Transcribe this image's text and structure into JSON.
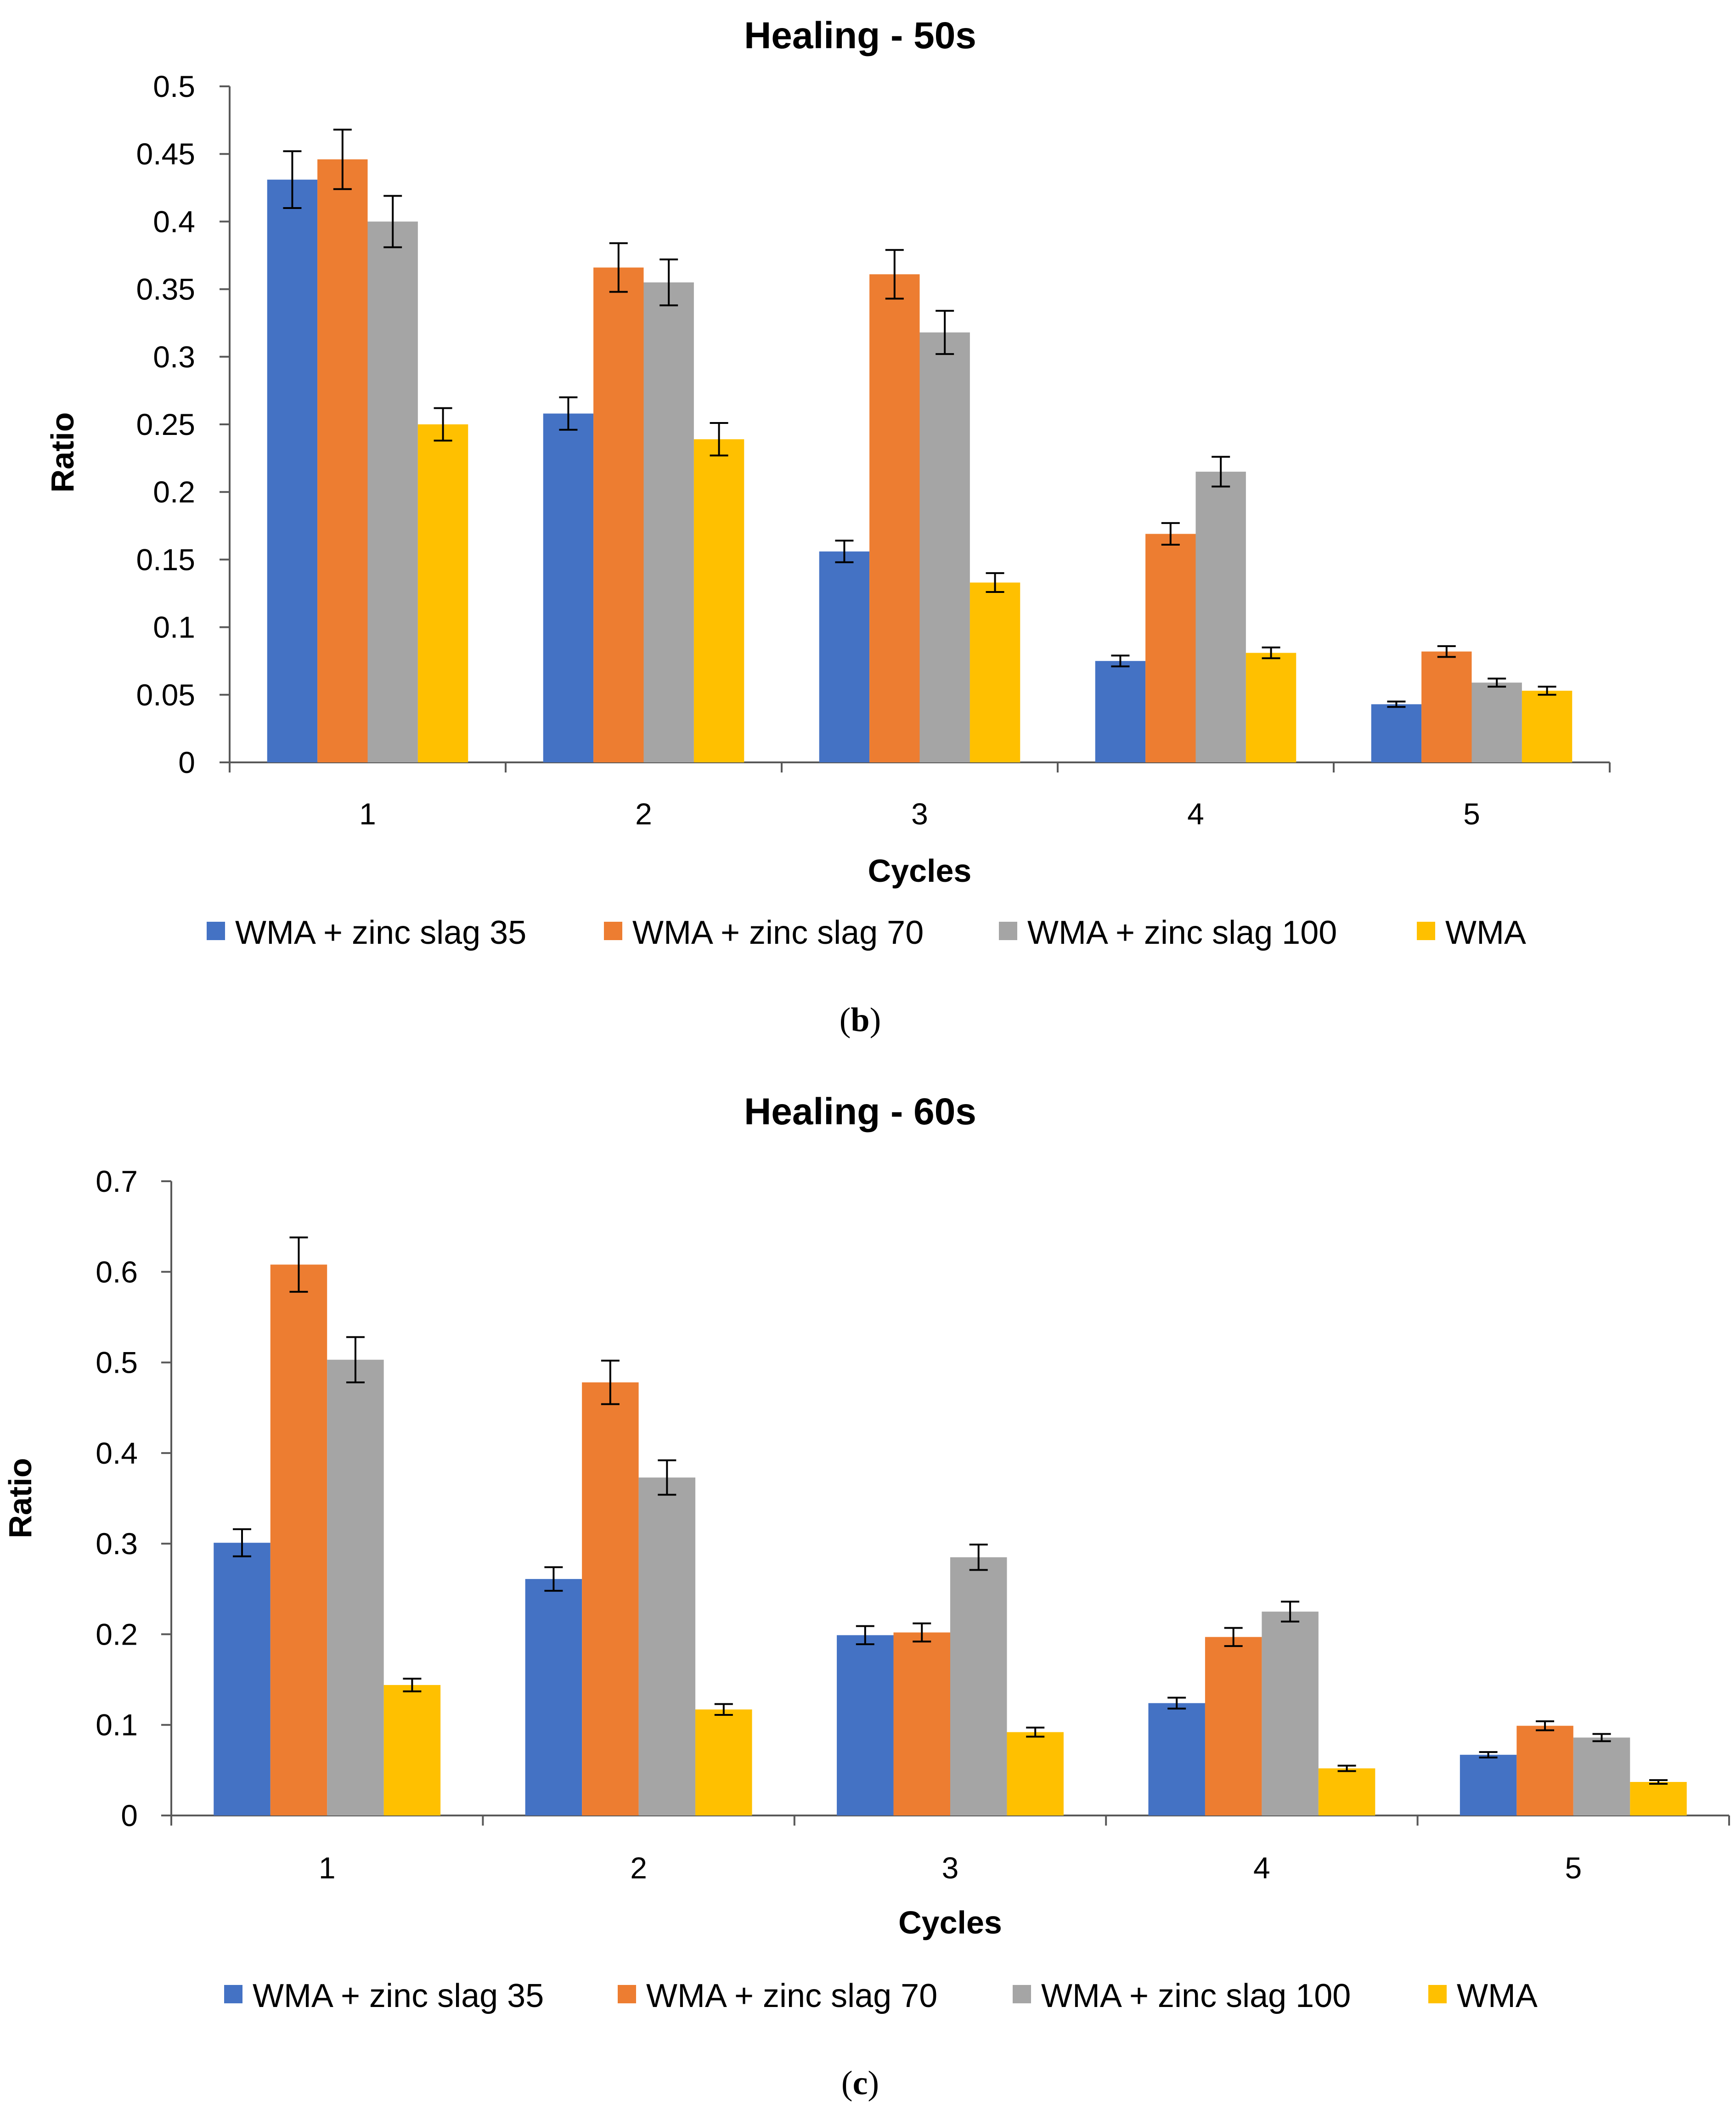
{
  "chart_data": [
    {
      "type": "bar",
      "title": "Healing - 50s",
      "xlabel": "Cycles",
      "ylabel": "Ratio",
      "caption": {
        "open": "(",
        "letter": "b",
        "close": ")"
      },
      "categories": [
        "1",
        "2",
        "3",
        "4",
        "5"
      ],
      "ylim": [
        0,
        0.5
      ],
      "yticks": [
        "0",
        "0.05",
        "0.1",
        "0.15",
        "0.2",
        "0.25",
        "0.3",
        "0.35",
        "0.4",
        "0.45",
        "0.5"
      ],
      "grid": false,
      "legend_position": "bottom",
      "series": [
        {
          "name": "WMA + zinc slag 35",
          "color": "#4472C4",
          "values": [
            0.431,
            0.258,
            0.156,
            0.075,
            0.043
          ],
          "errors": [
            0.021,
            0.012,
            0.008,
            0.004,
            0.002
          ]
        },
        {
          "name": "WMA + zinc slag 70",
          "color": "#ED7D31",
          "values": [
            0.446,
            0.366,
            0.361,
            0.169,
            0.082
          ],
          "errors": [
            0.022,
            0.018,
            0.018,
            0.008,
            0.004
          ]
        },
        {
          "name": "WMA + zinc slag 100",
          "color": "#A5A5A5",
          "values": [
            0.4,
            0.355,
            0.318,
            0.215,
            0.059
          ],
          "errors": [
            0.019,
            0.017,
            0.016,
            0.011,
            0.003
          ]
        },
        {
          "name": "WMA",
          "color": "#FFC000",
          "values": [
            0.25,
            0.239,
            0.133,
            0.081,
            0.053
          ],
          "errors": [
            0.012,
            0.012,
            0.007,
            0.004,
            0.003
          ]
        }
      ]
    },
    {
      "type": "bar",
      "title": "Healing - 60s",
      "xlabel": "Cycles",
      "ylabel": "Ratio",
      "caption": {
        "open": "(",
        "letter": "c",
        "close": ")"
      },
      "categories": [
        "1",
        "2",
        "3",
        "4",
        "5"
      ],
      "ylim": [
        0,
        0.7
      ],
      "yticks": [
        "0",
        "0.1",
        "0.2",
        "0.3",
        "0.4",
        "0.5",
        "0.6",
        "0.7"
      ],
      "grid": false,
      "legend_position": "bottom",
      "series": [
        {
          "name": "WMA + zinc slag 35",
          "color": "#4472C4",
          "values": [
            0.301,
            0.261,
            0.199,
            0.124,
            0.067
          ],
          "errors": [
            0.015,
            0.013,
            0.01,
            0.006,
            0.003
          ]
        },
        {
          "name": "WMA + zinc slag 70",
          "color": "#ED7D31",
          "values": [
            0.608,
            0.478,
            0.202,
            0.197,
            0.099
          ],
          "errors": [
            0.03,
            0.024,
            0.01,
            0.01,
            0.005
          ]
        },
        {
          "name": "WMA + zinc slag 100",
          "color": "#A5A5A5",
          "values": [
            0.503,
            0.373,
            0.285,
            0.225,
            0.086
          ],
          "errors": [
            0.025,
            0.019,
            0.014,
            0.011,
            0.004
          ]
        },
        {
          "name": "WMA",
          "color": "#FFC000",
          "values": [
            0.144,
            0.117,
            0.092,
            0.052,
            0.037
          ],
          "errors": [
            0.007,
            0.006,
            0.005,
            0.003,
            0.002
          ]
        }
      ]
    }
  ]
}
